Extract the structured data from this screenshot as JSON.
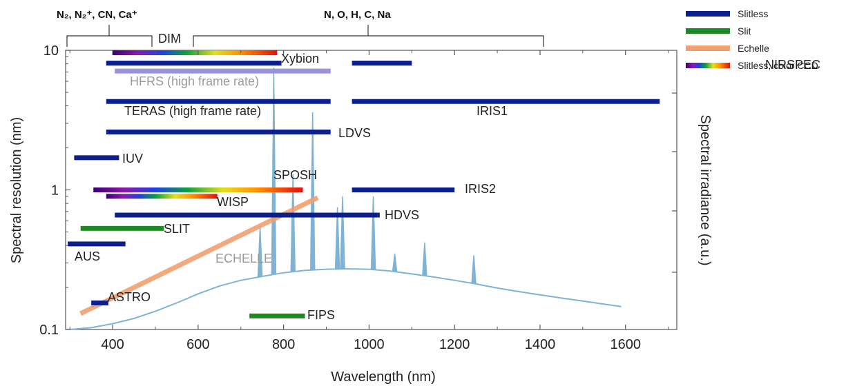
{
  "chart_data": {
    "type": "line",
    "xlabel": "Wavelength (nm)",
    "ylabel": "Spectral resolution (nm)",
    "y2label": "Spectral irradiance (a.u.)",
    "xlim": [
      290,
      1720
    ],
    "ylim": [
      0.1,
      10
    ],
    "yscale": "log",
    "x_ticks": [
      "400",
      "600",
      "800",
      "1000",
      "1200",
      "1400",
      "1600"
    ],
    "y_ticks": [
      "0.1",
      "1",
      "10"
    ],
    "grid": false,
    "legend_position": "top-right",
    "colors": {
      "slitless": "#0c1f8c",
      "slit": "#1e8a22",
      "echelle": "#f0a070",
      "hfrs": "#9b93d8",
      "spectrum": "#7fb3d5"
    },
    "legend": [
      {
        "label": "Slitless",
        "kind": "slitless"
      },
      {
        "label": "Slit",
        "kind": "slit"
      },
      {
        "label": "Echelle",
        "kind": "echelle"
      },
      {
        "label": "Slitless, color CCD",
        "kind": "color"
      }
    ],
    "series": [
      {
        "name": "Xybion",
        "kind": "color",
        "x0": 400,
        "x1": 785,
        "y": 9.6
      },
      {
        "name": "",
        "kind": "slitless",
        "x0": 385,
        "x1": 795,
        "y": 8.1
      },
      {
        "name": "NIRSPEC",
        "kind": "slitless",
        "x0": 960,
        "x1": 1100,
        "y": 8.1
      },
      {
        "name": "HFRS (high frame rate)",
        "kind": "hfrs",
        "x0": 405,
        "x1": 910,
        "y": 7.1
      },
      {
        "name": "TERAS (high frame rate)",
        "kind": "slitless",
        "x0": 385,
        "x1": 910,
        "y": 4.3
      },
      {
        "name": "IRIS1",
        "kind": "slitless",
        "x0": 960,
        "x1": 1680,
        "y": 4.3
      },
      {
        "name": "LDVS",
        "kind": "slitless",
        "x0": 385,
        "x1": 910,
        "y": 2.6
      },
      {
        "name": "IUV",
        "kind": "slitless",
        "x0": 310,
        "x1": 415,
        "y": 1.7
      },
      {
        "name": "SPOSH",
        "kind": "color",
        "x0": 355,
        "x1": 845,
        "y": 1.0
      },
      {
        "name": "IRIS2",
        "kind": "slitless",
        "x0": 960,
        "x1": 1200,
        "y": 1.0
      },
      {
        "name": "WISP",
        "kind": "color",
        "x0": 385,
        "x1": 645,
        "y": 0.9
      },
      {
        "name": "HDVS",
        "kind": "slitless",
        "x0": 405,
        "x1": 1025,
        "y": 0.66
      },
      {
        "name": "SLIT",
        "kind": "slit",
        "x0": 325,
        "x1": 520,
        "y": 0.53
      },
      {
        "name": "AUS",
        "kind": "slitless",
        "x0": 295,
        "x1": 430,
        "y": 0.41
      },
      {
        "name": "ASTRO",
        "kind": "slitless",
        "x0": 350,
        "x1": 390,
        "y": 0.155
      },
      {
        "name": "FIPS",
        "kind": "slit",
        "x0": 720,
        "x1": 850,
        "y": 0.125
      }
    ],
    "echelle": {
      "name": "ECHELLE",
      "x": [
        325,
        880
      ],
      "y": [
        0.13,
        0.88
      ]
    },
    "spectrum": {
      "x": [
        300,
        350,
        400,
        450,
        500,
        550,
        600,
        650,
        700,
        750,
        800,
        850,
        900,
        950,
        1000,
        1050,
        1100,
        1150,
        1200,
        1250,
        1300,
        1350,
        1400,
        1450,
        1500,
        1550,
        1590
      ],
      "y": [
        0.1,
        0.103,
        0.11,
        0.12,
        0.135,
        0.155,
        0.18,
        0.205,
        0.225,
        0.24,
        0.255,
        0.265,
        0.27,
        0.272,
        0.27,
        0.262,
        0.25,
        0.238,
        0.225,
        0.212,
        0.198,
        0.187,
        0.177,
        0.168,
        0.16,
        0.152,
        0.146
      ],
      "peaks": [
        {
          "x": 777,
          "h": 7.5
        },
        {
          "x": 822,
          "h": 1.3
        },
        {
          "x": 868,
          "h": 3.6
        },
        {
          "x": 926,
          "h": 0.75
        },
        {
          "x": 938,
          "h": 0.9
        },
        {
          "x": 1010,
          "h": 0.9
        },
        {
          "x": 745,
          "h": 0.55
        },
        {
          "x": 1130,
          "h": 0.42
        },
        {
          "x": 1245,
          "h": 0.34
        },
        {
          "x": 1060,
          "h": 0.35
        }
      ]
    },
    "top_brackets": [
      {
        "label": "N₂, N₂⁺, CN, Ca⁺",
        "x0": 295,
        "x1": 500
      },
      {
        "label": "DIM",
        "x0": 0,
        "x1": 0
      },
      {
        "label": "N, O, H, C, Na",
        "x0": 610,
        "x1": 1400
      }
    ]
  }
}
